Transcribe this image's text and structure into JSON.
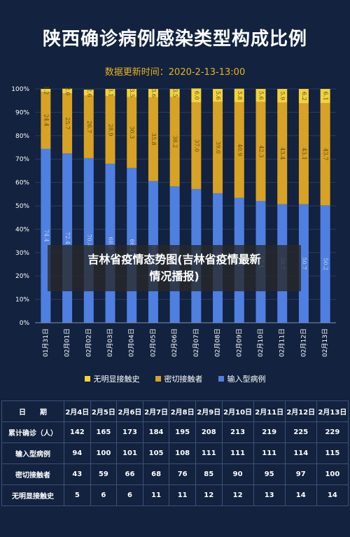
{
  "title": "陕西确诊病例感染类型构成比例",
  "subtitle": "数据更新时间：2020-2-13-13:00",
  "overlay": {
    "line1": "吉林省疫情态势图(吉林省疫情最新",
    "line2": "情况播报)"
  },
  "colors": {
    "background": "#12223f",
    "imported": "#4f7fe0",
    "close_contact": "#d8a224",
    "unknown": "#f3d23c",
    "grid": "#2a3b5e"
  },
  "chart_data": {
    "type": "bar",
    "stacked": true,
    "categories": [
      "01月31日",
      "02月01日",
      "02月02日",
      "02月03日",
      "02月04日",
      "02月05日",
      "02月06日",
      "02月07日",
      "02月08日",
      "02月09日",
      "02月10日",
      "02月11日",
      "02月12日",
      "02月13日"
    ],
    "y_ticks": [
      "0%",
      "10%",
      "20%",
      "30%",
      "40%",
      "50%",
      "60%",
      "70%",
      "80%",
      "90%",
      "100%"
    ],
    "ylim": [
      0,
      100
    ],
    "series": [
      {
        "name": "输入型病例",
        "color": "#4f7fe0",
        "values": [
          74.4,
          72.4,
          70.4,
          68.0,
          66.2,
          60.6,
          58.3,
          57.2,
          55.4,
          53.4,
          52.1,
          50.7,
          50.7,
          50.2
        ]
      },
      {
        "name": "密切接触者",
        "color": "#d8a224",
        "values": [
          24.4,
          25.7,
          26.7,
          28.9,
          30.3,
          35.8,
          38.2,
          37.0,
          39.0,
          40.9,
          42.3,
          43.4,
          43.1,
          43.7
        ]
      },
      {
        "name": "无明显接触史",
        "color": "#f3d23c",
        "values": [
          1.2,
          2.0,
          2.6,
          3.1,
          3.5,
          3.6,
          3.5,
          6.0,
          5.6,
          5.8,
          5.6,
          5.9,
          6.2,
          6.1
        ]
      }
    ],
    "legend": [
      "无明显接触史",
      "密切接触者",
      "输入型病例"
    ],
    "legend_position": "bottom"
  },
  "table": {
    "header": [
      "日　　期",
      "2月4日",
      "2月5日",
      "2月6日",
      "2月7日",
      "2月8日",
      "2月9日",
      "2月10日",
      "2月11日",
      "2月12日",
      "2月13日"
    ],
    "rows": [
      {
        "label": "累计确诊（人）",
        "values": [
          "142",
          "165",
          "173",
          "184",
          "195",
          "208",
          "213",
          "219",
          "225",
          "229"
        ]
      },
      {
        "label": "输入型病例",
        "values": [
          "94",
          "100",
          "101",
          "105",
          "108",
          "111",
          "111",
          "111",
          "114",
          "115"
        ]
      },
      {
        "label": "密切接触者",
        "values": [
          "43",
          "59",
          "66",
          "68",
          "76",
          "85",
          "90",
          "95",
          "97",
          "100"
        ]
      },
      {
        "label": "无明显接触史",
        "values": [
          "5",
          "6",
          "6",
          "11",
          "11",
          "12",
          "12",
          "13",
          "14",
          "14"
        ]
      }
    ]
  }
}
